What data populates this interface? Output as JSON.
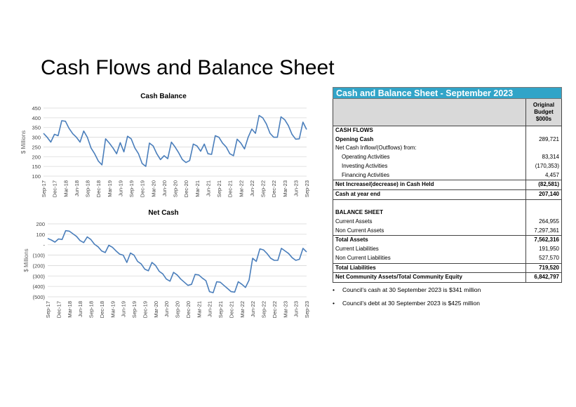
{
  "slide": {
    "title": "Cash Flows and Balance Sheet"
  },
  "chart_data": [
    {
      "type": "line",
      "title": "Cash Balance",
      "ylabel": "$ Millions",
      "xlabel": "",
      "ylim": [
        100,
        450
      ],
      "yticks": [
        100,
        150,
        200,
        250,
        300,
        350,
        400,
        450
      ],
      "ytick_labels": [
        "100",
        "150",
        "200",
        "250",
        "300",
        "350",
        "400",
        "450"
      ],
      "xtick_labels": [
        "Sep-17",
        "Dec-17",
        "Mar-18",
        "Jun-18",
        "Sep-18",
        "Dec-18",
        "Mar-19",
        "Jun-19",
        "Sep-19",
        "Dec-19",
        "Mar-20",
        "Jun-20",
        "Sep-20",
        "Dec-20",
        "Mar-21",
        "Jun-21",
        "Sep-21",
        "Dec-21",
        "Mar-22",
        "Jun-22",
        "Sep-22",
        "Dec-22",
        "Mar-23",
        "Jun-23",
        "Sep-23"
      ],
      "grid": true,
      "color": "#4a7ebb",
      "values": [
        320,
        300,
        275,
        315,
        308,
        385,
        382,
        345,
        318,
        300,
        275,
        332,
        300,
        245,
        215,
        178,
        158,
        292,
        270,
        245,
        215,
        272,
        225,
        305,
        292,
        245,
        215,
        165,
        150,
        270,
        255,
        215,
        185,
        205,
        190,
        275,
        250,
        220,
        185,
        170,
        180,
        265,
        255,
        228,
        265,
        215,
        212,
        308,
        300,
        270,
        250,
        215,
        205,
        290,
        270,
        240,
        300,
        342,
        320,
        412,
        400,
        368,
        320,
        300,
        300,
        405,
        390,
        360,
        315,
        290,
        292,
        378,
        340
      ]
    },
    {
      "type": "line",
      "title": "Net Cash",
      "ylabel": "$ Millions",
      "xlabel": "",
      "ylim": [
        -500,
        200
      ],
      "yticks": [
        -500,
        -400,
        -300,
        -200,
        -100,
        0,
        100,
        200
      ],
      "ytick_labels": [
        "(500)",
        "(400)",
        "(300)",
        "(200)",
        "(100)",
        "-",
        "100",
        "200"
      ],
      "xtick_labels": [
        "Sep-17",
        "Dec-17",
        "Mar-18",
        "Jun-18",
        "Sep-18",
        "Dec-18",
        "Mar-19",
        "Jun-19",
        "Sep-19",
        "Dec-19",
        "Mar-20",
        "Jun-20",
        "Sep-20",
        "Dec-20",
        "Mar-21",
        "Jun-21",
        "Sep-21",
        "Dec-21",
        "Mar-22",
        "Jun-22",
        "Sep-22",
        "Dec-22",
        "Mar-23",
        "Jun-23",
        "Sep-23"
      ],
      "grid": true,
      "color": "#4a7ebb",
      "values": [
        60,
        45,
        25,
        55,
        50,
        135,
        130,
        105,
        80,
        40,
        20,
        75,
        50,
        5,
        -20,
        -60,
        -75,
        -5,
        -25,
        -60,
        -90,
        -100,
        -170,
        -80,
        -100,
        -160,
        -185,
        -235,
        -250,
        -170,
        -200,
        -255,
        -280,
        -330,
        -350,
        -265,
        -290,
        -330,
        -360,
        -390,
        -380,
        -285,
        -290,
        -320,
        -345,
        -450,
        -460,
        -355,
        -360,
        -390,
        -420,
        -450,
        -455,
        -355,
        -380,
        -410,
        -340,
        -130,
        -160,
        -40,
        -50,
        -85,
        -130,
        -150,
        -150,
        -35,
        -60,
        -85,
        -125,
        -150,
        -140,
        -35,
        -70
      ]
    }
  ],
  "table": {
    "header": "Cash and Balance Sheet - September 2023",
    "column_header": [
      "Original",
      "Budget",
      "$000s"
    ],
    "rows": [
      {
        "label": "CASH FLOWS",
        "value": "",
        "style": "bold"
      },
      {
        "label": "Opening Cash",
        "value": "289,721",
        "style": "bold-label"
      },
      {
        "label": "Net Cash Inflow/(Outflows) from:",
        "value": "",
        "style": ""
      },
      {
        "label": "Operating Activities",
        "value": "83,314",
        "style": "sub"
      },
      {
        "label": "Investing Activities",
        "value": "(170,353)",
        "style": "sub"
      },
      {
        "label": "Financing Activities",
        "value": "4,457",
        "style": "sub"
      },
      {
        "label": "Net Increase/(decrease) in Cash Held",
        "value": "(82,581)",
        "style": "bold"
      },
      {
        "label": "Cash at year end",
        "value": "207,140",
        "style": "bold"
      },
      {
        "label": "BALANCE SHEET",
        "value": "",
        "style": "bold"
      },
      {
        "label": "Current Assets",
        "value": "264,955",
        "style": ""
      },
      {
        "label": "Non Current Assets",
        "value": "7,297,361",
        "style": ""
      },
      {
        "label": "Total Assets",
        "value": "7,562,316",
        "style": "bold"
      },
      {
        "label": "Current Liabilities",
        "value": "191,950",
        "style": ""
      },
      {
        "label": "Non Current Liabilities",
        "value": "527,570",
        "style": ""
      },
      {
        "label": "Total Liabilities",
        "value": "719,520",
        "style": "bold"
      },
      {
        "label": "Net Community Assets/Total Community Equity",
        "value": "6,842,797",
        "style": "bold"
      }
    ]
  },
  "notes": [
    "Council’s cash at 30 September 2023 is $341 million",
    "Council’s debt at 30 September 2023 is $425 million"
  ],
  "bullet": "•"
}
